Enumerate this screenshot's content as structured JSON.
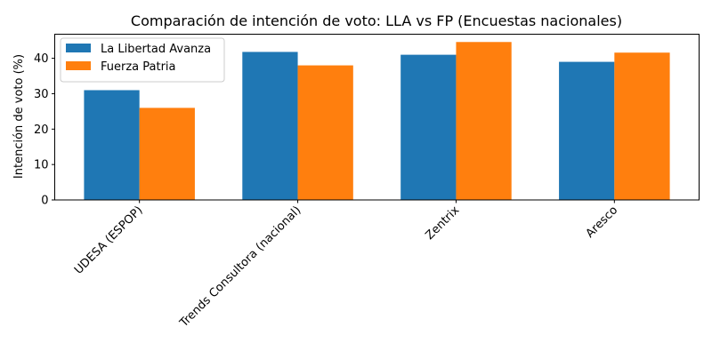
{
  "chart_data": {
    "type": "bar",
    "title": "Comparación de intención de voto: LLA vs FP (Encuestas nacionales)",
    "xlabel": "",
    "ylabel": "Intención de voto (%)",
    "categories": [
      "UDESA (ESPOP)",
      "Trends Consultora (nacional)",
      "Zentrix",
      "Aresco"
    ],
    "series": [
      {
        "name": "La Libertad Avanza",
        "color": "#1f77b4",
        "values": [
          31,
          41.8,
          41,
          39
        ]
      },
      {
        "name": "Fuerza Patria",
        "color": "#ff7f0e",
        "values": [
          26,
          38,
          44.6,
          41.6
        ]
      }
    ],
    "ylim": [
      0,
      46.8
    ],
    "yticks": [
      0,
      10,
      20,
      30,
      40
    ],
    "grid": false,
    "legend": "upper-left",
    "xtick_rotation": 45
  }
}
